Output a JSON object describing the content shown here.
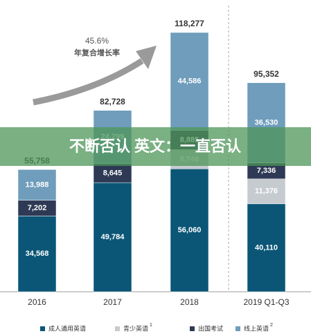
{
  "chart_data": {
    "type": "stacked_bar",
    "annotation": {
      "value": "45.6%",
      "label": "年复合增长率"
    },
    "banner": "不断否认 英文：一直否认",
    "categories": [
      "2016",
      "2017",
      "2018",
      "2019 Q1-Q3"
    ],
    "series": [
      {
        "name": "成人通用英语",
        "color": "#0b5676",
        "values": [
          34568,
          49784,
          56060,
          40110
        ],
        "value_labels": [
          "34,568",
          "49,784",
          "56,060",
          "40,110"
        ]
      },
      {
        "name": "青少英语",
        "note": "1",
        "color": "#c6cbd0",
        "values": [
          null,
          null,
          8746,
          11376
        ],
        "value_labels": [
          null,
          null,
          "8,746",
          "11,376"
        ]
      },
      {
        "name": "出国考试",
        "color": "#2e3a55",
        "values": [
          7202,
          8645,
          8885,
          7336
        ],
        "value_labels": [
          "7,202",
          "8,645",
          "8,885",
          "7,336"
        ]
      },
      {
        "name": "线上英语",
        "note": "2",
        "color": "#6f9dbb",
        "values": [
          13988,
          24299,
          44586,
          36530
        ],
        "value_labels": [
          "13,988",
          "24,299",
          "44,586",
          "36,530"
        ]
      }
    ],
    "totals": [
      55758,
      82728,
      118277,
      95352
    ],
    "total_labels": [
      "55,758",
      "82,728",
      "118,277",
      "95,352"
    ]
  }
}
